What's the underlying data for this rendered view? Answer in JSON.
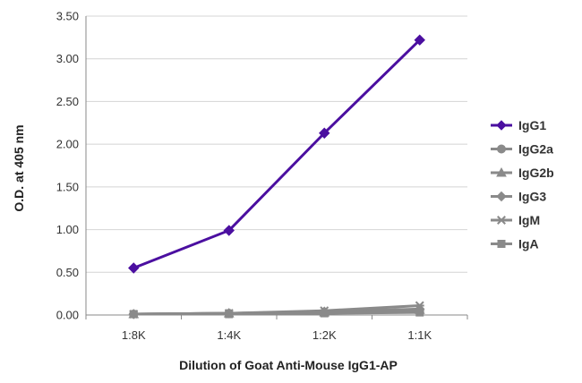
{
  "chart_data": {
    "type": "line",
    "title": "",
    "xlabel": "Dilution of Goat Anti-Mouse IgG1-AP",
    "ylabel": "O.D. at 405 nm",
    "ylim": [
      0,
      3.5
    ],
    "yticks": [
      "0.00",
      "0.50",
      "1.00",
      "1.50",
      "2.00",
      "2.50",
      "3.00",
      "3.50"
    ],
    "categories": [
      "1:8K",
      "1:4K",
      "1:2K",
      "1:1K"
    ],
    "grid": true,
    "legend_position": "right",
    "series": [
      {
        "name": "IgG1",
        "values": [
          0.55,
          0.99,
          2.13,
          3.22
        ],
        "color": "#4b0fa0",
        "marker": "diamond"
      },
      {
        "name": "IgG2a",
        "values": [
          0.01,
          0.02,
          0.03,
          0.05
        ],
        "color": "#8a8a8a",
        "marker": "circle"
      },
      {
        "name": "IgG2b",
        "values": [
          0.01,
          0.02,
          0.03,
          0.06
        ],
        "color": "#8a8a8a",
        "marker": "triangle"
      },
      {
        "name": "IgG3",
        "values": [
          0.01,
          0.02,
          0.04,
          0.07
        ],
        "color": "#8a8a8a",
        "marker": "diamond"
      },
      {
        "name": "IgM",
        "values": [
          0.01,
          0.02,
          0.05,
          0.11
        ],
        "color": "#8a8a8a",
        "marker": "star"
      },
      {
        "name": "IgA",
        "values": [
          0.01,
          0.01,
          0.02,
          0.03
        ],
        "color": "#8a8a8a",
        "marker": "square"
      }
    ]
  }
}
